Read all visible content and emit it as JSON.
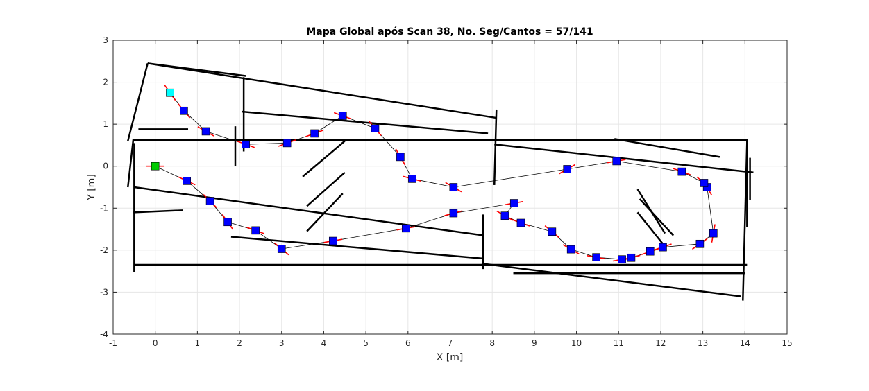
{
  "chart_data": {
    "type": "scatter",
    "title": "Mapa Global após Scan 38, No. Seg/Cantos = 57/141",
    "xlabel": "X [m]",
    "ylabel": "Y [m]",
    "xlim": [
      -1,
      15
    ],
    "ylim": [
      -4,
      3
    ],
    "grid": true,
    "x_ticks": [
      -1,
      0,
      1,
      2,
      3,
      4,
      5,
      6,
      7,
      8,
      9,
      10,
      11,
      12,
      13,
      14,
      15
    ],
    "y_ticks": [
      -4,
      -3,
      -2,
      -1,
      0,
      1,
      2,
      3
    ],
    "x_tick_labels": [
      "-1",
      "0",
      "1",
      "2",
      "3",
      "4",
      "5",
      "6",
      "7",
      "8",
      "9",
      "10",
      "11",
      "12",
      "13",
      "14",
      "15"
    ],
    "y_tick_labels": [
      "-4",
      "-3",
      "-2",
      "-1",
      "0",
      "1",
      "2",
      "3"
    ],
    "colors": {
      "segments": "#000000",
      "trajectory": "#000000",
      "pose_marker": "#0000ff",
      "heading": "#ff0000",
      "start_marker": "#00cc00",
      "end_marker": "#00ffff",
      "grid": "#e6e6e6"
    },
    "trajectory": [
      {
        "x": 0.0,
        "y": 0.0,
        "theta": 0.0
      },
      {
        "x": 0.75,
        "y": -0.35,
        "theta": -25
      },
      {
        "x": 1.3,
        "y": -0.83,
        "theta": -45
      },
      {
        "x": 1.72,
        "y": -1.33,
        "theta": -55
      },
      {
        "x": 2.38,
        "y": -1.53,
        "theta": -20
      },
      {
        "x": 3.0,
        "y": -1.97,
        "theta": -40
      },
      {
        "x": 4.22,
        "y": -1.78,
        "theta": 10
      },
      {
        "x": 5.95,
        "y": -1.48,
        "theta": 10
      },
      {
        "x": 7.08,
        "y": -1.12,
        "theta": 15
      },
      {
        "x": 8.52,
        "y": -0.88,
        "theta": 10
      },
      {
        "x": 8.3,
        "y": -1.18,
        "theta": -30
      },
      {
        "x": 8.68,
        "y": -1.35,
        "theta": -20
      },
      {
        "x": 9.42,
        "y": -1.56,
        "theta": -40
      },
      {
        "x": 9.87,
        "y": -1.98,
        "theta": -30
      },
      {
        "x": 10.47,
        "y": -2.17,
        "theta": -10
      },
      {
        "x": 11.08,
        "y": -2.22,
        "theta": 10
      },
      {
        "x": 11.3,
        "y": -2.18,
        "theta": 15
      },
      {
        "x": 11.75,
        "y": -2.03,
        "theta": 20
      },
      {
        "x": 12.05,
        "y": -1.93,
        "theta": 20
      },
      {
        "x": 12.93,
        "y": -1.85,
        "theta": 35
      },
      {
        "x": 13.25,
        "y": -1.6,
        "theta": 80
      },
      {
        "x": 13.1,
        "y": -0.5,
        "theta": 120
      },
      {
        "x": 13.03,
        "y": -0.4,
        "theta": 140
      },
      {
        "x": 12.5,
        "y": -0.13,
        "theta": 160
      },
      {
        "x": 10.95,
        "y": 0.12,
        "theta": 190
      },
      {
        "x": 9.78,
        "y": -0.07,
        "theta": 210
      },
      {
        "x": 7.08,
        "y": -0.5,
        "theta": 150
      },
      {
        "x": 6.1,
        "y": -0.3,
        "theta": 165
      },
      {
        "x": 5.82,
        "y": 0.22,
        "theta": 120
      },
      {
        "x": 5.22,
        "y": 0.9,
        "theta": 130
      },
      {
        "x": 4.45,
        "y": 1.2,
        "theta": 160
      },
      {
        "x": 3.78,
        "y": 0.78,
        "theta": 200
      },
      {
        "x": 3.13,
        "y": 0.55,
        "theta": 200
      },
      {
        "x": 2.15,
        "y": 0.52,
        "theta": 160
      },
      {
        "x": 1.2,
        "y": 0.83,
        "theta": 150
      },
      {
        "x": 0.68,
        "y": 1.32,
        "theta": 130
      },
      {
        "x": 0.35,
        "y": 1.75,
        "theta": 125
      }
    ],
    "segments": [
      [
        -0.18,
        2.45,
        2.15,
        2.15
      ],
      [
        -0.18,
        2.45,
        8.1,
        1.15
      ],
      [
        -0.65,
        0.6,
        -0.18,
        2.45
      ],
      [
        -0.65,
        -0.5,
        -0.52,
        0.65
      ],
      [
        -0.52,
        0.62,
        14.05,
        0.62
      ],
      [
        2.1,
        2.12,
        2.1,
        0.35
      ],
      [
        1.9,
        0.0,
        1.9,
        0.95
      ],
      [
        2.05,
        1.3,
        7.9,
        0.78
      ],
      [
        -0.4,
        0.88,
        0.78,
        0.88
      ],
      [
        -0.5,
        -0.5,
        7.8,
        -1.65
      ],
      [
        -0.52,
        -1.1,
        0.65,
        -1.05
      ],
      [
        -0.5,
        -2.35,
        14.05,
        -2.35
      ],
      [
        -0.5,
        0.55,
        -0.5,
        -2.52
      ],
      [
        1.8,
        -1.68,
        7.8,
        -2.2
      ],
      [
        7.78,
        -1.15,
        7.78,
        -2.45
      ],
      [
        8.1,
        1.35,
        8.05,
        -0.45
      ],
      [
        8.05,
        0.52,
        14.2,
        -0.15
      ],
      [
        10.9,
        0.65,
        13.4,
        0.22
      ],
      [
        3.5,
        -0.25,
        4.5,
        0.6
      ],
      [
        3.6,
        -0.95,
        4.5,
        -0.15
      ],
      [
        3.6,
        -1.55,
        4.45,
        -0.65
      ],
      [
        7.75,
        -2.32,
        13.9,
        -3.1
      ],
      [
        8.5,
        -2.55,
        14.0,
        -2.55
      ],
      [
        11.45,
        -0.55,
        12.1,
        -1.6
      ],
      [
        11.5,
        -0.78,
        12.3,
        -1.65
      ],
      [
        11.45,
        -1.1,
        12.05,
        -1.85
      ],
      [
        13.95,
        -3.2,
        14.05,
        0.6
      ],
      [
        14.05,
        -1.45,
        14.05,
        0.65
      ],
      [
        14.12,
        0.2,
        14.12,
        -0.8
      ]
    ]
  }
}
